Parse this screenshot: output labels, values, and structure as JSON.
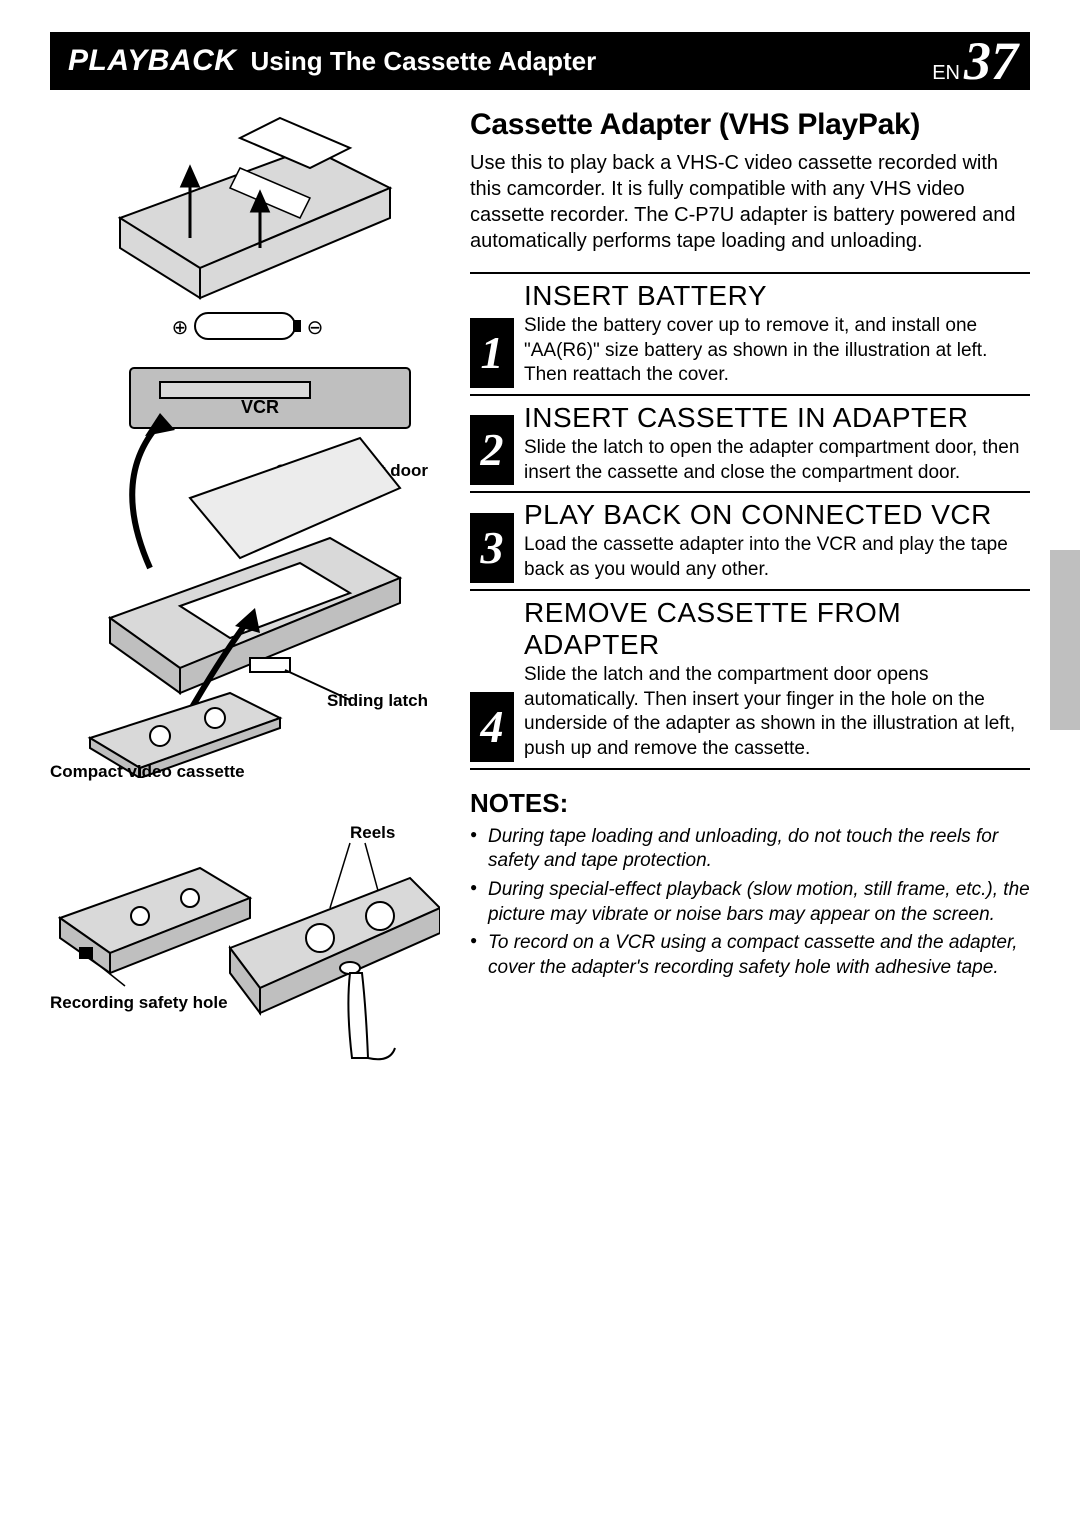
{
  "header": {
    "playback": "PLAYBACK",
    "subtitle": "Using The Cassette Adapter",
    "lang": "EN",
    "page_number": "37"
  },
  "section_title": "Cassette Adapter (VHS PlayPak)",
  "intro": "Use this to play back a VHS-C video cassette recorded with this camcorder. It is fully compatible with any VHS video cassette recorder. The C-P7U adapter is battery powered and automatically performs tape loading and unloading.",
  "steps": [
    {
      "num": "1",
      "heading": "INSERT BATTERY",
      "text": "Slide the battery cover up to remove it, and install one \"AA(R6)\" size battery as shown in the illustration at left. Then reattach the cover."
    },
    {
      "num": "2",
      "heading": "INSERT CASSETTE IN ADAPTER",
      "text": "Slide the latch to open the adapter compartment door, then insert the cassette and close the compartment door."
    },
    {
      "num": "3",
      "heading": "PLAY BACK ON CONNECTED VCR",
      "text": "Load the cassette adapter into the VCR and play the tape back as you would any other."
    },
    {
      "num": "4",
      "heading": "REMOVE CASSETTE FROM ADAPTER",
      "text": "Slide the latch and the compartment door opens automatically. Then insert your finger in the hole on the underside of the adapter as shown in the illustration at left, push up and remove the cassette."
    }
  ],
  "notes_heading": "NOTES:",
  "notes": [
    "During tape loading and unloading, do not touch the reels for safety and tape protection.",
    "During special-effect playback (slow motion, still frame, etc.), the picture may vibrate or noise bars may appear on the screen.",
    "To record on a VCR using a compact cassette and the adapter, cover the adapter's recording safety hole with adhesive tape."
  ],
  "illustration_labels": {
    "vcr": "VCR",
    "compartment_door": "Compartment door",
    "sliding_latch": "Sliding latch",
    "compact_cassette": "Compact video cassette",
    "reels": "Reels",
    "recording_safety_hole": "Recording safety hole",
    "plus": "⊕",
    "minus": "⊖"
  },
  "colors": {
    "black": "#000000",
    "white": "#ffffff",
    "gray_fill": "#bfbfbf",
    "light_gray": "#d9d9d9"
  }
}
